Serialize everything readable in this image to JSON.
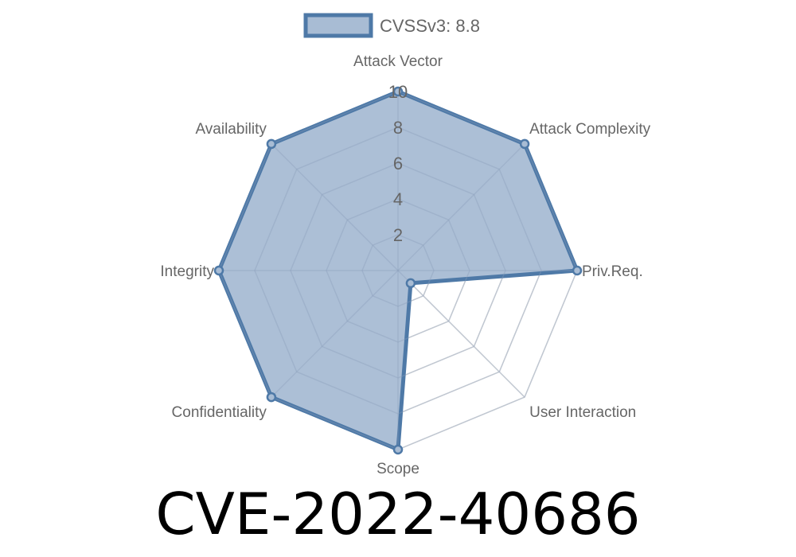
{
  "chart_data": {
    "type": "radar",
    "axes": [
      "Attack Vector",
      "Attack Complexity",
      "Priv.Req.",
      "User Interaction",
      "Scope",
      "Confidentiality",
      "Integrity",
      "Availability"
    ],
    "series": [
      {
        "name": "CVSSv3: 8.8",
        "values": [
          10,
          10,
          10,
          1,
          10,
          10,
          10,
          10
        ]
      }
    ],
    "range": [
      0,
      10
    ],
    "ticks": [
      "2",
      "4",
      "6",
      "8",
      "10"
    ],
    "legend_position": "top",
    "colors": {
      "line": "#4e79a7",
      "fill": "#a8bcd4",
      "grid": "#dddddd"
    }
  },
  "title": "CVE-2022-40686"
}
